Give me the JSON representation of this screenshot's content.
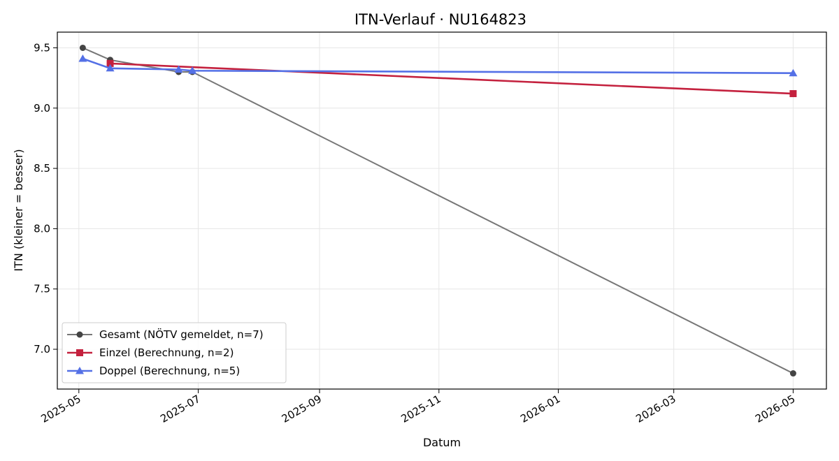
{
  "chart_data": {
    "type": "line",
    "title": "ITN-Verlauf · NU164823",
    "xlabel": "Datum",
    "ylabel": "ITN  (kleiner = besser)",
    "x_type": "date",
    "xlim": [
      "2025-04-20",
      "2026-05-18"
    ],
    "ylim": [
      6.67,
      9.63
    ],
    "x_ticks": [
      "2025-05-01",
      "2025-07-01",
      "2025-09-01",
      "2025-11-01",
      "2026-01-01",
      "2026-03-01",
      "2026-05-01"
    ],
    "x_tick_labels": [
      "2025-05",
      "2025-07",
      "2025-09",
      "2025-11",
      "2026-01",
      "2026-03",
      "2026-05"
    ],
    "y_ticks": [
      7.0,
      7.5,
      8.0,
      8.5,
      9.0,
      9.5
    ],
    "y_tick_labels": [
      "7.0",
      "7.5",
      "8.0",
      "8.5",
      "9.0",
      "9.5"
    ],
    "grid": true,
    "legend_position": "lower-left",
    "series": [
      {
        "name": "Gesamt (NÖTV gemeldet, n=7)",
        "color": "#777777",
        "marker_color": "#444444",
        "marker": "circle",
        "x": [
          "2025-05-03",
          "2025-05-17",
          "2025-06-21",
          "2025-06-28",
          "2026-05-01"
        ],
        "y": [
          9.5,
          9.4,
          9.3,
          9.3,
          6.8
        ]
      },
      {
        "name": "Einzel (Berechnung, n=2)",
        "color": "#c4213e",
        "marker": "square",
        "x": [
          "2025-05-17",
          "2026-05-01"
        ],
        "y": [
          9.37,
          9.12
        ]
      },
      {
        "name": "Doppel (Berechnung, n=5)",
        "color": "#5470e6",
        "marker": "triangle",
        "x": [
          "2025-05-03",
          "2025-05-17",
          "2025-06-21",
          "2025-06-28",
          "2026-05-01"
        ],
        "y": [
          9.41,
          9.33,
          9.32,
          9.31,
          9.29
        ]
      }
    ]
  }
}
